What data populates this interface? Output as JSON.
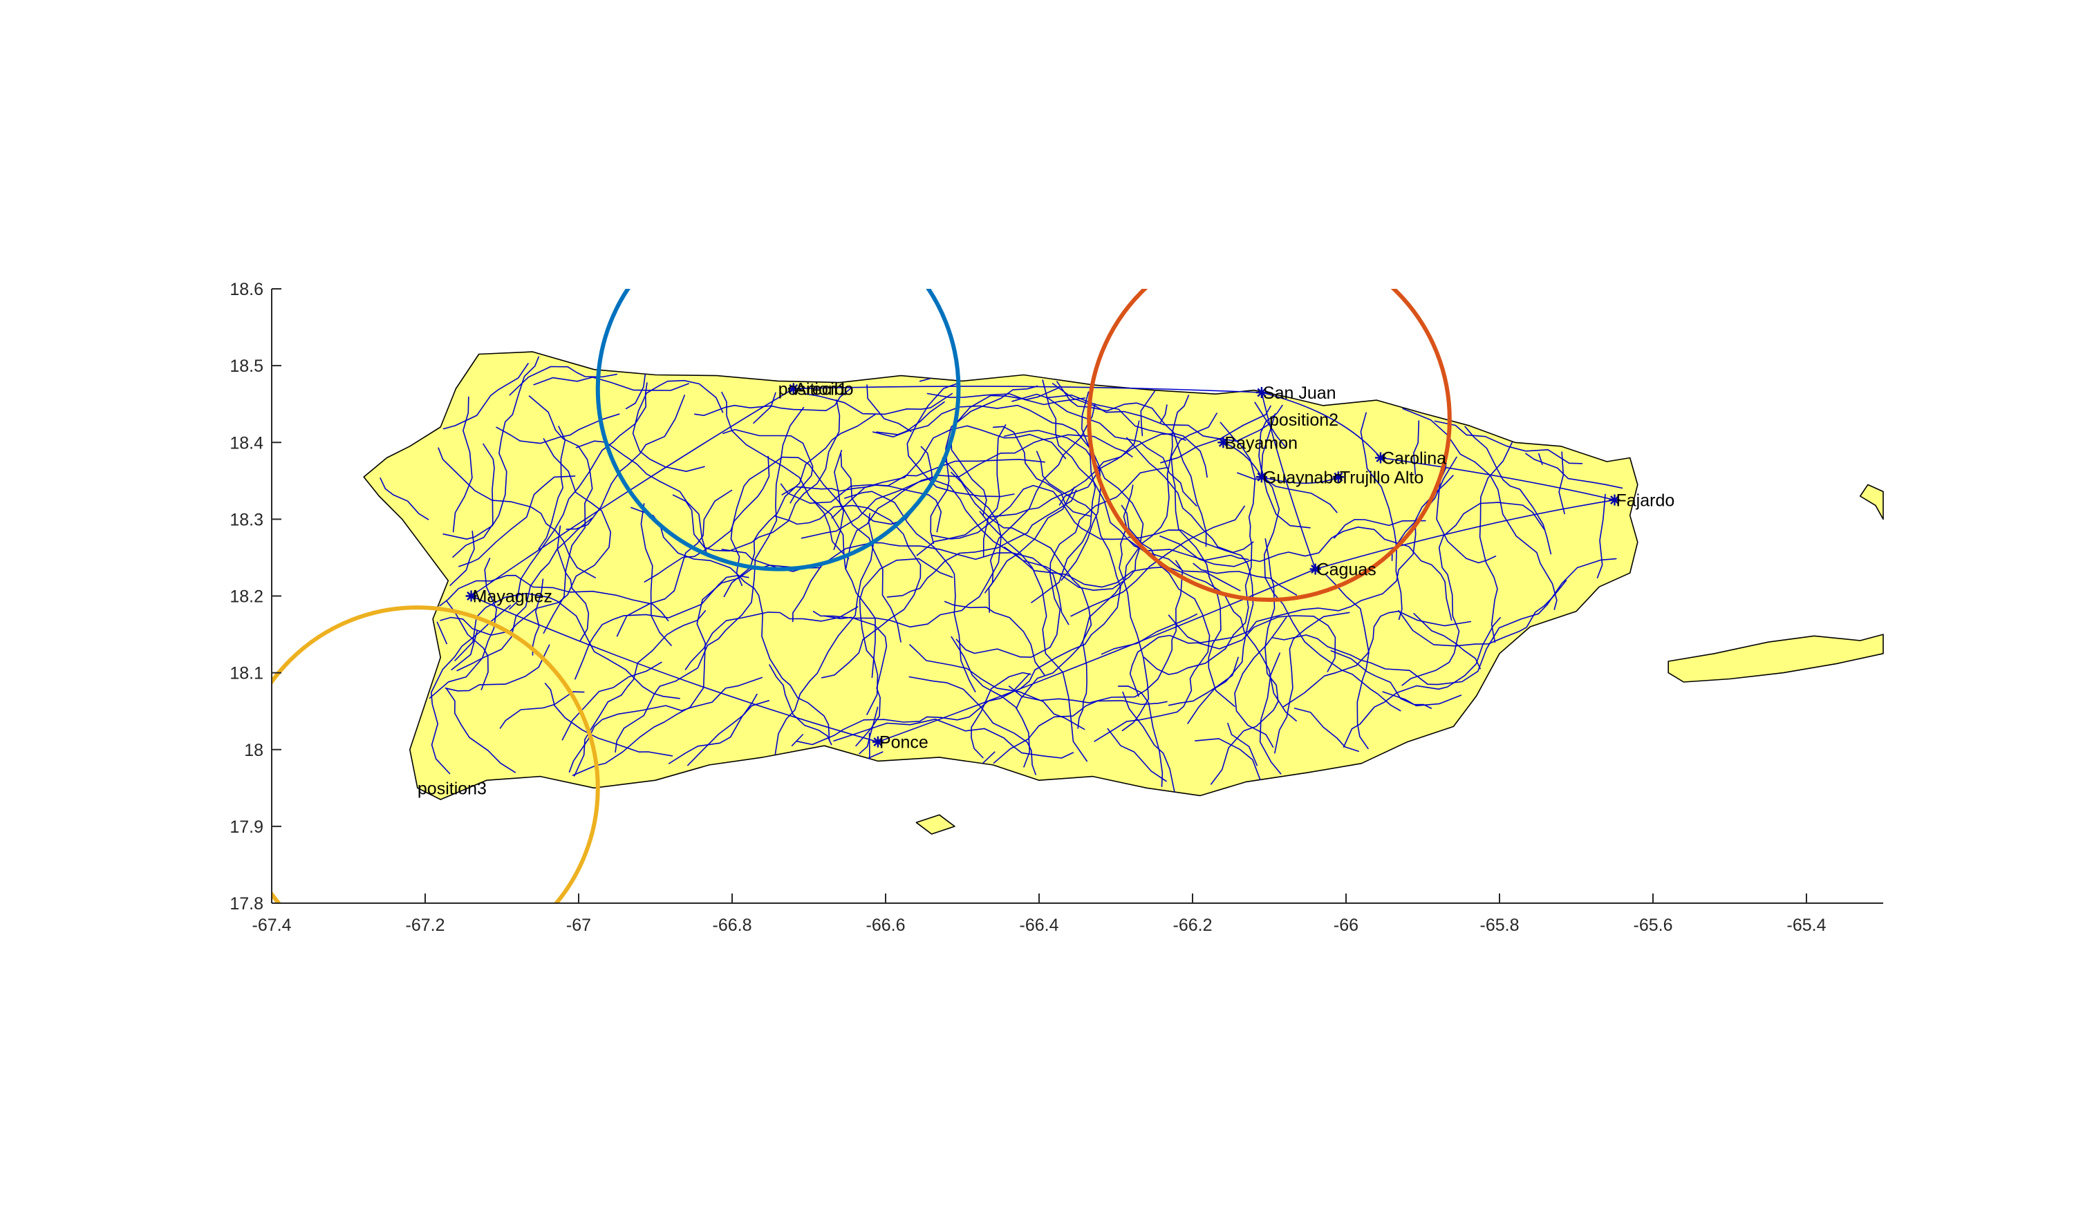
{
  "chart_data": {
    "type": "map",
    "xlim": [
      -67.4,
      -65.3
    ],
    "ylim": [
      17.8,
      18.6
    ],
    "x_ticks": [
      -67.4,
      -67.2,
      -67,
      -66.8,
      -66.6,
      -66.4,
      -66.2,
      -66,
      -65.8,
      -65.6,
      -65.4
    ],
    "x_tick_labels": [
      "-67.4",
      "-67.2",
      "-67",
      "-66.8",
      "-66.6",
      "-66.4",
      "-66.2",
      "-66",
      "-65.8",
      "-65.6",
      "-65.4"
    ],
    "y_ticks": [
      17.8,
      17.9,
      18,
      18.1,
      18.2,
      18.3,
      18.4,
      18.5,
      18.6
    ],
    "y_tick_labels": [
      "17.8",
      "17.9",
      "18",
      "18.1",
      "18.2",
      "18.3",
      "18.4",
      "18.5",
      "18.6"
    ],
    "grid": false,
    "land_color": "#ffff80",
    "coast_color": "#000000",
    "road_color": "#0000cc",
    "cities": [
      {
        "name": "Arecibo",
        "lon": -66.72,
        "lat": 18.47
      },
      {
        "name": "San Juan",
        "lon": -66.11,
        "lat": 18.465
      },
      {
        "name": "Bayamon",
        "lon": -66.16,
        "lat": 18.4
      },
      {
        "name": "Carolina",
        "lon": -65.955,
        "lat": 18.38
      },
      {
        "name": "Guaynabo",
        "lon": -66.11,
        "lat": 18.355
      },
      {
        "name": "Trujillo Alto",
        "lon": -66.01,
        "lat": 18.355
      },
      {
        "name": "Fajardo",
        "lon": -65.65,
        "lat": 18.325
      },
      {
        "name": "Caguas",
        "lon": -66.04,
        "lat": 18.235
      },
      {
        "name": "Mayaguez",
        "lon": -67.14,
        "lat": 18.2
      },
      {
        "name": "Ponce",
        "lon": -66.61,
        "lat": 18.01
      }
    ],
    "positions": [
      {
        "name": "position1",
        "lon": -66.74,
        "lat": 18.47,
        "radius_deg": 0.235,
        "color": "#0072bd"
      },
      {
        "name": "position2",
        "lon": -66.1,
        "lat": 18.43,
        "radius_deg": 0.235,
        "color": "#d95319"
      },
      {
        "name": "position3",
        "lon": -67.21,
        "lat": 17.95,
        "radius_deg": 0.235,
        "color": "#edb120"
      }
    ]
  }
}
